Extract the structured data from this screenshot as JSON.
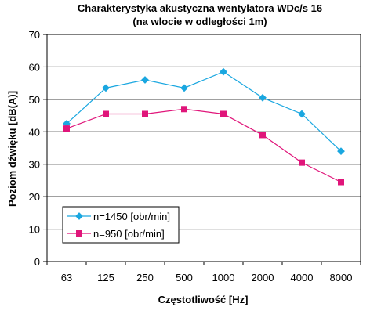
{
  "chart_data": {
    "type": "line",
    "title": "Charakterystyka akustyczna wentylatora WDc/s 16",
    "subtitle": "(na wlocie w odległości 1m)",
    "xlabel": "Częstotliwość [Hz]",
    "ylabel": "Poziom dźwięku [dB(A)]",
    "categories": [
      "63",
      "125",
      "250",
      "500",
      "1000",
      "2000",
      "4000",
      "8000"
    ],
    "ylim": [
      0,
      70
    ],
    "yticks": [
      0,
      10,
      20,
      30,
      40,
      50,
      60,
      70
    ],
    "grid": true,
    "legend_position": "bottom-left",
    "series": [
      {
        "name": "n=1450 [obr/min]",
        "color": "#1aa7e0",
        "marker": "diamond",
        "values": [
          42.5,
          53.5,
          56,
          53.5,
          58.5,
          50.5,
          45.5,
          34
        ]
      },
      {
        "name": "n=950 [obr/min]",
        "color": "#e0157a",
        "marker": "square",
        "values": [
          41,
          45.5,
          45.5,
          47,
          45.5,
          39,
          30.5,
          24.5
        ]
      }
    ]
  }
}
